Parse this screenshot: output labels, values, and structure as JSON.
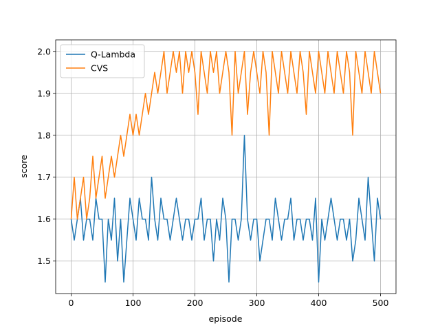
{
  "chart_data": {
    "type": "line",
    "x_label": "episode",
    "y_label": "score",
    "x": [
      0,
      5,
      10,
      15,
      20,
      25,
      30,
      35,
      40,
      45,
      50,
      55,
      60,
      65,
      70,
      75,
      80,
      85,
      90,
      95,
      100,
      105,
      110,
      115,
      120,
      125,
      130,
      135,
      140,
      145,
      150,
      155,
      160,
      165,
      170,
      175,
      180,
      185,
      190,
      195,
      200,
      205,
      210,
      215,
      220,
      225,
      230,
      235,
      240,
      245,
      250,
      255,
      260,
      265,
      270,
      275,
      280,
      285,
      290,
      295,
      300,
      305,
      310,
      315,
      320,
      325,
      330,
      335,
      340,
      345,
      350,
      355,
      360,
      365,
      370,
      375,
      380,
      385,
      390,
      395,
      400,
      405,
      410,
      415,
      420,
      425,
      430,
      435,
      440,
      445,
      450,
      455,
      460,
      465,
      470,
      475,
      480,
      485,
      490,
      495,
      500
    ],
    "series": [
      {
        "name": "Q-Lambda",
        "color": "#1f77b4",
        "values": [
          1.6,
          1.55,
          1.6,
          1.65,
          1.55,
          1.6,
          1.6,
          1.55,
          1.65,
          1.6,
          1.6,
          1.45,
          1.6,
          1.55,
          1.65,
          1.5,
          1.6,
          1.45,
          1.55,
          1.65,
          1.6,
          1.55,
          1.65,
          1.6,
          1.6,
          1.55,
          1.7,
          1.6,
          1.55,
          1.65,
          1.6,
          1.6,
          1.55,
          1.6,
          1.65,
          1.6,
          1.55,
          1.6,
          1.6,
          1.55,
          1.6,
          1.6,
          1.65,
          1.55,
          1.6,
          1.6,
          1.5,
          1.6,
          1.55,
          1.65,
          1.6,
          1.45,
          1.6,
          1.6,
          1.55,
          1.6,
          1.8,
          1.6,
          1.55,
          1.6,
          1.6,
          1.5,
          1.55,
          1.6,
          1.6,
          1.55,
          1.65,
          1.6,
          1.55,
          1.6,
          1.6,
          1.65,
          1.55,
          1.6,
          1.6,
          1.55,
          1.6,
          1.6,
          1.55,
          1.65,
          1.45,
          1.6,
          1.55,
          1.6,
          1.65,
          1.6,
          1.55,
          1.6,
          1.6,
          1.55,
          1.6,
          1.5,
          1.55,
          1.65,
          1.6,
          1.55,
          1.7,
          1.6,
          1.5,
          1.65,
          1.6
        ]
      },
      {
        "name": "CVS",
        "color": "#ff7f0e",
        "values": [
          1.6,
          1.7,
          1.6,
          1.65,
          1.7,
          1.6,
          1.65,
          1.75,
          1.65,
          1.7,
          1.75,
          1.65,
          1.7,
          1.75,
          1.7,
          1.75,
          1.8,
          1.75,
          1.8,
          1.85,
          1.8,
          1.85,
          1.8,
          1.85,
          1.9,
          1.85,
          1.9,
          1.95,
          1.9,
          1.95,
          2.0,
          1.9,
          1.95,
          2.0,
          1.95,
          2.0,
          1.9,
          2.0,
          1.95,
          2.0,
          1.95,
          1.85,
          2.0,
          1.95,
          1.9,
          2.0,
          1.95,
          2.0,
          1.9,
          1.95,
          2.0,
          1.95,
          1.8,
          2.0,
          1.9,
          1.95,
          2.0,
          1.85,
          1.95,
          2.0,
          1.95,
          1.9,
          2.0,
          1.95,
          1.8,
          2.0,
          1.95,
          1.9,
          2.0,
          1.95,
          1.9,
          2.0,
          1.95,
          1.9,
          2.0,
          1.95,
          1.85,
          2.0,
          1.95,
          1.9,
          2.0,
          1.95,
          1.9,
          2.0,
          1.95,
          1.9,
          2.0,
          1.95,
          1.9,
          2.0,
          1.95,
          1.8,
          2.0,
          1.95,
          1.9,
          2.0,
          1.95,
          1.9,
          2.0,
          1.95,
          1.9
        ]
      }
    ],
    "xlim": [
      -25,
      525
    ],
    "xticks": [
      0,
      100,
      200,
      300,
      400,
      500
    ],
    "ylim": [
      1.4225,
      2.0275
    ],
    "yticks": [
      1.5,
      1.6,
      1.7,
      1.8,
      1.9,
      {
        "value": 2,
        "label": "2.0"
      }
    ],
    "grid": true,
    "legend": "upper-left"
  }
}
